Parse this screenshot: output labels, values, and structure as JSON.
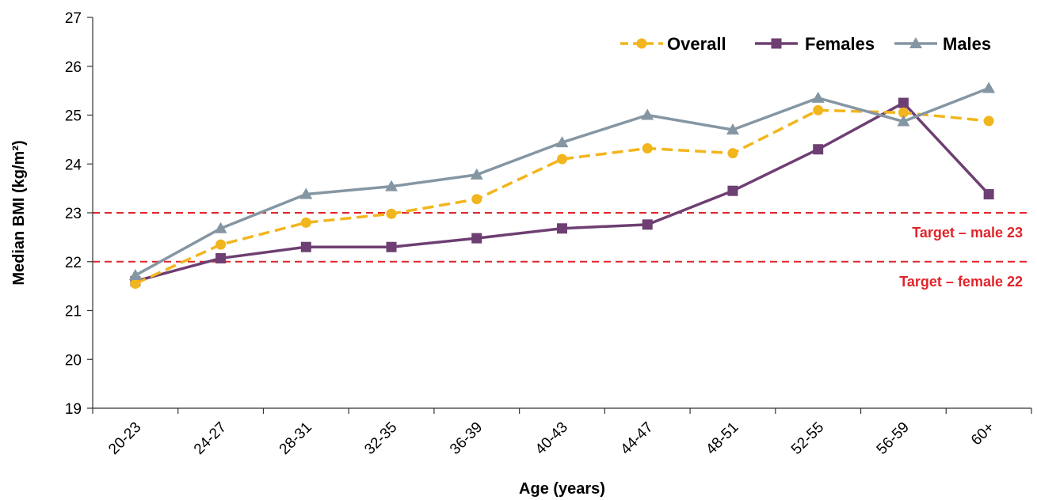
{
  "chart_data": {
    "type": "line",
    "xlabel": "Age (years)",
    "ylabel": "Median BMI (kg/m²)",
    "ylim": [
      19,
      27
    ],
    "yticks": [
      "19",
      "20",
      "21",
      "22",
      "23",
      "24",
      "25",
      "26",
      "27"
    ],
    "categories": [
      "20-23",
      "24-27",
      "28-31",
      "32-35",
      "36-39",
      "40-43",
      "44-47",
      "48-51",
      "52-55",
      "56-59",
      "60+"
    ],
    "series": [
      {
        "name": "Overall",
        "color": "#f2b51d",
        "marker": "circle",
        "dash": true,
        "values": [
          21.55,
          22.35,
          22.8,
          22.98,
          23.28,
          24.1,
          24.32,
          24.22,
          25.1,
          25.05,
          24.88
        ]
      },
      {
        "name": "Females",
        "color": "#6e3f72",
        "marker": "square",
        "dash": false,
        "values": [
          21.6,
          22.07,
          22.3,
          22.3,
          22.48,
          22.68,
          22.76,
          23.45,
          24.3,
          25.25,
          23.38
        ]
      },
      {
        "name": "Males",
        "color": "#8596a3",
        "marker": "triangle",
        "dash": false,
        "values": [
          21.72,
          22.68,
          23.38,
          23.54,
          23.78,
          24.44,
          25.0,
          24.7,
          25.35,
          24.87,
          25.55
        ]
      }
    ],
    "reference_lines": [
      {
        "value": 23,
        "label": "Target – male 23",
        "color": "#e0242b"
      },
      {
        "value": 22,
        "label": "Target – female 22",
        "color": "#e0242b"
      }
    ],
    "grid": false,
    "legend_position": "top-right"
  }
}
